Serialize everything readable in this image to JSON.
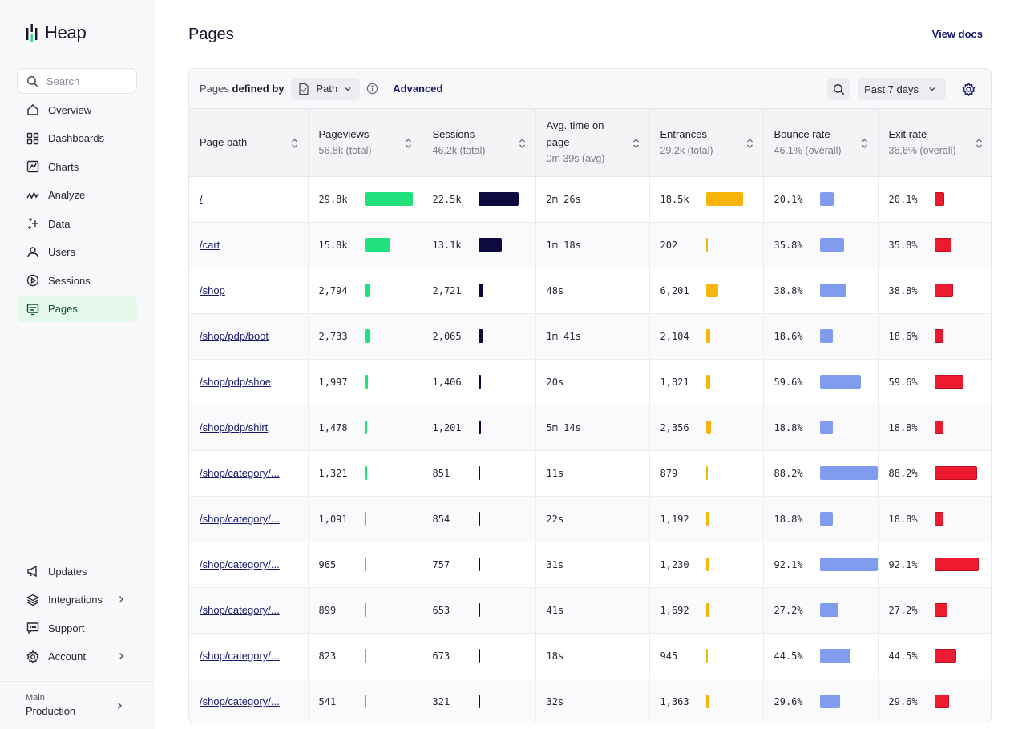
{
  "app": {
    "name": "Heap"
  },
  "sidebar": {
    "search_placeholder": "Search",
    "items": [
      {
        "label": "Overview",
        "icon": "home-icon"
      },
      {
        "label": "Dashboards",
        "icon": "dashboards-icon"
      },
      {
        "label": "Charts",
        "icon": "charts-icon"
      },
      {
        "label": "Analyze",
        "icon": "analyze-icon"
      },
      {
        "label": "Data",
        "icon": "data-sparkle-icon"
      },
      {
        "label": "Users",
        "icon": "users-icon"
      },
      {
        "label": "Sessions",
        "icon": "sessions-icon"
      },
      {
        "label": "Pages",
        "icon": "pages-icon",
        "active": true
      }
    ],
    "bottom_items": [
      {
        "label": "Updates",
        "icon": "megaphone-icon"
      },
      {
        "label": "Integrations",
        "icon": "layers-icon"
      },
      {
        "label": "Support",
        "icon": "chat-icon"
      },
      {
        "label": "Account",
        "icon": "gear-icon"
      }
    ],
    "environment": {
      "label": "Main",
      "value": "Production"
    }
  },
  "header": {
    "title": "Pages",
    "view_docs": "View docs"
  },
  "toolbar": {
    "defined_by_prefix": "Pages",
    "defined_by_bold": "defined by",
    "path_select": "Path",
    "advanced": "Advanced",
    "date_range": "Past 7 days"
  },
  "table": {
    "columns": [
      {
        "title": "Page path",
        "subtitle": ""
      },
      {
        "title": "Pageviews",
        "subtitle": "56.8k (total)"
      },
      {
        "title": "Sessions",
        "subtitle": "46.2k (total)"
      },
      {
        "title": "Avg. time on page",
        "subtitle": "0m 39s (avg)"
      },
      {
        "title": "Entrances",
        "subtitle": "29.2k (total)"
      },
      {
        "title": "Bounce rate",
        "subtitle": "46.1% (overall)"
      },
      {
        "title": "Exit rate",
        "subtitle": "36.6% (overall)"
      }
    ],
    "rows": [
      {
        "path": "/",
        "pageviews": "29.8k",
        "pv_val": 29800,
        "sessions": "22.5k",
        "ss_val": 22500,
        "avg_time": "2m 26s",
        "entrances": "18.5k",
        "en_val": 18500,
        "bounce": "20.1%",
        "br_val": 20.1,
        "exit": "20.1%",
        "er_val": 20.1
      },
      {
        "path": "/cart",
        "pageviews": "15.8k",
        "pv_val": 15800,
        "sessions": "13.1k",
        "ss_val": 13100,
        "avg_time": "1m 18s",
        "entrances": "202",
        "en_val": 202,
        "bounce": "35.8%",
        "br_val": 35.8,
        "exit": "35.8%",
        "er_val": 35.8
      },
      {
        "path": "/shop",
        "pageviews": "2,794",
        "pv_val": 2794,
        "sessions": "2,721",
        "ss_val": 2721,
        "avg_time": "48s",
        "entrances": "6,201",
        "en_val": 6201,
        "bounce": "38.8%",
        "br_val": 38.8,
        "exit": "38.8%",
        "er_val": 38.8
      },
      {
        "path": "/shop/pdp/boot",
        "pageviews": "2,733",
        "pv_val": 2733,
        "sessions": "2,065",
        "ss_val": 2065,
        "avg_time": "1m 41s",
        "entrances": "2,104",
        "en_val": 2104,
        "bounce": "18.6%",
        "br_val": 18.6,
        "exit": "18.6%",
        "er_val": 18.6
      },
      {
        "path": "/shop/pdp/shoe",
        "pageviews": "1,997",
        "pv_val": 1997,
        "sessions": "1,406",
        "ss_val": 1406,
        "avg_time": "20s",
        "entrances": "1,821",
        "en_val": 1821,
        "bounce": "59.6%",
        "br_val": 59.6,
        "exit": "59.6%",
        "er_val": 59.6
      },
      {
        "path": "/shop/pdp/shirt",
        "pageviews": "1,478",
        "pv_val": 1478,
        "sessions": "1,201",
        "ss_val": 1201,
        "avg_time": "5m 14s",
        "entrances": "2,356",
        "en_val": 2356,
        "bounce": "18.8%",
        "br_val": 18.8,
        "exit": "18.8%",
        "er_val": 18.8
      },
      {
        "path": "/shop/category/...",
        "pageviews": "1,321",
        "pv_val": 1321,
        "sessions": "851",
        "ss_val": 851,
        "avg_time": "11s",
        "entrances": "879",
        "en_val": 879,
        "bounce": "88.2%",
        "br_val": 88.2,
        "exit": "88.2%",
        "er_val": 88.2
      },
      {
        "path": "/shop/category/...",
        "pageviews": "1,091",
        "pv_val": 1091,
        "sessions": "854",
        "ss_val": 854,
        "avg_time": "22s",
        "entrances": "1,192",
        "en_val": 1192,
        "bounce": "18.8%",
        "br_val": 18.8,
        "exit": "18.8%",
        "er_val": 18.8
      },
      {
        "path": "/shop/category/...",
        "pageviews": "965",
        "pv_val": 965,
        "sessions": "757",
        "ss_val": 757,
        "avg_time": "31s",
        "entrances": "1,230",
        "en_val": 1230,
        "bounce": "92.1%",
        "br_val": 92.1,
        "exit": "92.1%",
        "er_val": 92.1
      },
      {
        "path": "/shop/category/...",
        "pageviews": "899",
        "pv_val": 899,
        "sessions": "653",
        "ss_val": 653,
        "avg_time": "41s",
        "entrances": "1,692",
        "en_val": 1692,
        "bounce": "27.2%",
        "br_val": 27.2,
        "exit": "27.2%",
        "er_val": 27.2
      },
      {
        "path": "/shop/category/...",
        "pageviews": "823",
        "pv_val": 823,
        "sessions": "673",
        "ss_val": 673,
        "avg_time": "18s",
        "entrances": "945",
        "en_val": 945,
        "bounce": "44.5%",
        "br_val": 44.5,
        "exit": "44.5%",
        "er_val": 44.5
      },
      {
        "path": "/shop/category/...",
        "pageviews": "541",
        "pv_val": 541,
        "sessions": "321",
        "ss_val": 321,
        "avg_time": "32s",
        "entrances": "1,363",
        "en_val": 1363,
        "bounce": "29.6%",
        "br_val": 29.6,
        "exit": "29.6%",
        "er_val": 29.6
      }
    ]
  },
  "colors": {
    "pageviews_bar": "#22e07a",
    "sessions_bar": "#0c0a3e",
    "entrances_bar": "#f7b50c",
    "bounce_bar": "#7f9cee",
    "exit_bar": "#ee1a30",
    "active_nav": "#e4f8ec",
    "link": "#1a1a6e"
  }
}
